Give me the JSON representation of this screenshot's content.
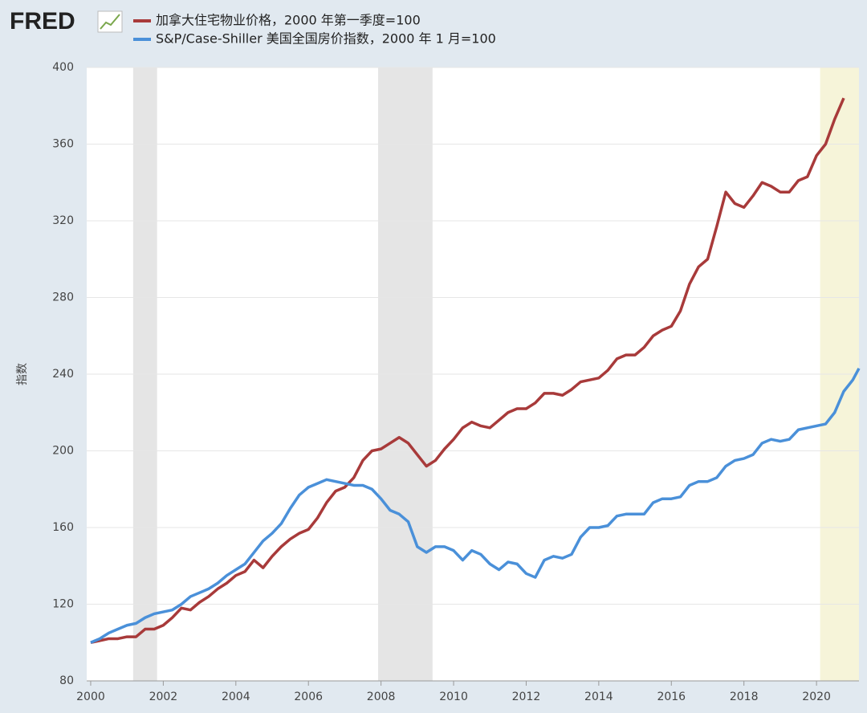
{
  "logo": "FRED",
  "chart_data": {
    "type": "line",
    "y_label": "指数",
    "xlim": [
      1999.89,
      2021.17
    ],
    "xticks": [
      2000,
      2002,
      2004,
      2006,
      2008,
      2010,
      2012,
      2014,
      2016,
      2018,
      2020
    ],
    "ylim": [
      80,
      400
    ],
    "yticks": [
      80,
      120,
      160,
      200,
      240,
      280,
      320,
      360,
      400
    ],
    "grid": true,
    "legend": "top",
    "shading": [
      {
        "start": 2001.17,
        "end": 2001.83,
        "color": "#e5e5e5"
      },
      {
        "start": 2007.92,
        "end": 2009.42,
        "color": "#e5e5e5"
      },
      {
        "start": 2020.1,
        "end": 2021.17,
        "color": "#f6f4d9"
      }
    ],
    "series": [
      {
        "name": "加拿大住宅物业价格，2000 年第一季度=100",
        "color": "#a83a3a",
        "x": [
          2000,
          2000.25,
          2000.5,
          2000.75,
          2001,
          2001.25,
          2001.5,
          2001.75,
          2002,
          2002.25,
          2002.5,
          2002.75,
          2003,
          2003.25,
          2003.5,
          2003.75,
          2004,
          2004.25,
          2004.5,
          2004.75,
          2005,
          2005.25,
          2005.5,
          2005.75,
          2006,
          2006.25,
          2006.5,
          2006.75,
          2007,
          2007.25,
          2007.5,
          2007.75,
          2008,
          2008.25,
          2008.5,
          2008.75,
          2009,
          2009.25,
          2009.5,
          2009.75,
          2010,
          2010.25,
          2010.5,
          2010.75,
          2011,
          2011.25,
          2011.5,
          2011.75,
          2012,
          2012.25,
          2012.5,
          2012.75,
          2013,
          2013.25,
          2013.5,
          2013.75,
          2014,
          2014.25,
          2014.5,
          2014.75,
          2015,
          2015.25,
          2015.5,
          2015.75,
          2016,
          2016.25,
          2016.5,
          2016.75,
          2017,
          2017.25,
          2017.5,
          2017.75,
          2018,
          2018.25,
          2018.5,
          2018.75,
          2019,
          2019.25,
          2019.5,
          2019.75,
          2020,
          2020.25,
          2020.5,
          2020.75
        ],
        "values": [
          100,
          101,
          102,
          102,
          103,
          103,
          107,
          107,
          109,
          113,
          118,
          117,
          121,
          124,
          128,
          131,
          135,
          137,
          143,
          139,
          145,
          150,
          154,
          157,
          159,
          165,
          173,
          179,
          181,
          186,
          195,
          200,
          201,
          204,
          207,
          204,
          198,
          192,
          195,
          201,
          206,
          212,
          215,
          213,
          212,
          216,
          220,
          222,
          222,
          225,
          230,
          230,
          229,
          232,
          236,
          237,
          238,
          242,
          248,
          250,
          250,
          254,
          260,
          263,
          265,
          273,
          287,
          296,
          300,
          317,
          335,
          329,
          327,
          333,
          340,
          338,
          335,
          335,
          341,
          343,
          354,
          360,
          373,
          384
        ]
      },
      {
        "name": "S&P/Case-Shiller 美国全国房价指数，2000 年 1 月=100",
        "color": "#4a90d9",
        "x": [
          2000,
          2000.25,
          2000.5,
          2000.75,
          2001,
          2001.25,
          2001.5,
          2001.75,
          2002,
          2002.25,
          2002.5,
          2002.75,
          2003,
          2003.25,
          2003.5,
          2003.75,
          2004,
          2004.25,
          2004.5,
          2004.75,
          2005,
          2005.25,
          2005.5,
          2005.75,
          2006,
          2006.25,
          2006.5,
          2006.75,
          2007,
          2007.25,
          2007.5,
          2007.75,
          2008,
          2008.25,
          2008.5,
          2008.75,
          2009,
          2009.25,
          2009.5,
          2009.75,
          2010,
          2010.25,
          2010.5,
          2010.75,
          2011,
          2011.25,
          2011.5,
          2011.75,
          2012,
          2012.25,
          2012.5,
          2012.75,
          2013,
          2013.25,
          2013.5,
          2013.75,
          2014,
          2014.25,
          2014.5,
          2014.75,
          2015,
          2015.25,
          2015.5,
          2015.75,
          2016,
          2016.25,
          2016.5,
          2016.75,
          2017,
          2017.25,
          2017.5,
          2017.75,
          2018,
          2018.25,
          2018.5,
          2018.75,
          2019,
          2019.25,
          2019.5,
          2019.75,
          2020,
          2020.25,
          2020.5,
          2020.75,
          2021,
          2021.17
        ],
        "values": [
          100,
          102,
          105,
          107,
          109,
          110,
          113,
          115,
          116,
          117,
          120,
          124,
          126,
          128,
          131,
          135,
          138,
          141,
          147,
          153,
          157,
          162,
          170,
          177,
          181,
          183,
          185,
          184,
          183,
          182,
          182,
          180,
          175,
          169,
          167,
          163,
          150,
          147,
          150,
          150,
          148,
          143,
          148,
          146,
          141,
          138,
          142,
          141,
          136,
          134,
          143,
          145,
          144,
          146,
          155,
          160,
          160,
          161,
          166,
          167,
          167,
          167,
          173,
          175,
          175,
          176,
          182,
          184,
          184,
          186,
          192,
          195,
          196,
          198,
          204,
          206,
          205,
          206,
          211,
          212,
          213,
          214,
          220,
          231,
          237,
          243
        ]
      }
    ]
  }
}
